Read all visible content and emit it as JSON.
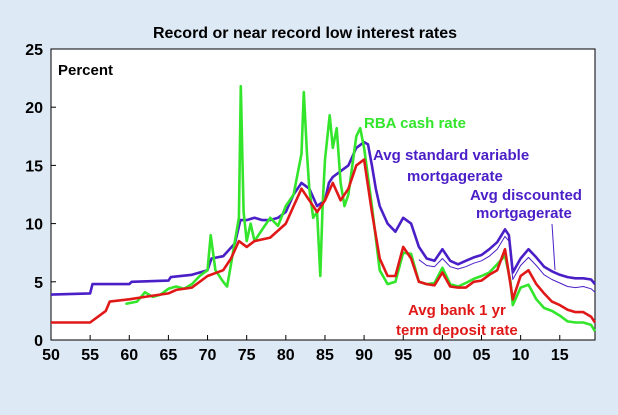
{
  "chart_data": {
    "type": "line",
    "title": "Record or near record low interest rates",
    "ylabel": "Percent",
    "xlabel": "",
    "xlim": [
      1950,
      2019.5
    ],
    "ylim": [
      0,
      25
    ],
    "x_ticks": [
      1950,
      1955,
      1960,
      1965,
      1970,
      1975,
      1980,
      1985,
      1990,
      1995,
      2000,
      2005,
      2010,
      2015
    ],
    "x_tick_labels": [
      "50",
      "55",
      "60",
      "65",
      "70",
      "75",
      "80",
      "85",
      "90",
      "95",
      "00",
      "05",
      "10",
      "15"
    ],
    "y_ticks": [
      0,
      5,
      10,
      15,
      20,
      25
    ],
    "y_tick_labels": [
      "0",
      "5",
      "10",
      "15",
      "20",
      "25"
    ],
    "grid": false,
    "series": [
      {
        "name": "Avg standard variable mortgagerate",
        "color": "#4b1fc7",
        "points": [
          [
            1950,
            3.9
          ],
          [
            1955,
            4.0
          ],
          [
            1955.3,
            4.8
          ],
          [
            1960,
            4.8
          ],
          [
            1960.3,
            5.0
          ],
          [
            1965,
            5.1
          ],
          [
            1965.3,
            5.4
          ],
          [
            1968,
            5.6
          ],
          [
            1970,
            6.0
          ],
          [
            1970.5,
            7.0
          ],
          [
            1972,
            7.2
          ],
          [
            1973.5,
            8.3
          ],
          [
            1974.2,
            10.3
          ],
          [
            1975,
            10.3
          ],
          [
            1976,
            10.5
          ],
          [
            1977,
            10.3
          ],
          [
            1978,
            10.3
          ],
          [
            1979,
            10.5
          ],
          [
            1980,
            11.0
          ],
          [
            1981,
            12.5
          ],
          [
            1982,
            13.5
          ],
          [
            1983,
            13.0
          ],
          [
            1984,
            11.5
          ],
          [
            1985,
            12.0
          ],
          [
            1985.5,
            13.5
          ],
          [
            1986,
            14.0
          ],
          [
            1987,
            14.5
          ],
          [
            1988,
            15.0
          ],
          [
            1989,
            16.5
          ],
          [
            1990,
            17.0
          ],
          [
            1990.5,
            16.8
          ],
          [
            1991,
            15.0
          ],
          [
            1991.5,
            13.0
          ],
          [
            1992,
            11.5
          ],
          [
            1993,
            10.0
          ],
          [
            1994,
            9.3
          ],
          [
            1995,
            10.5
          ],
          [
            1996,
            10.0
          ],
          [
            1997,
            8.0
          ],
          [
            1998,
            7.0
          ],
          [
            1999,
            6.8
          ],
          [
            2000,
            7.8
          ],
          [
            2001,
            6.8
          ],
          [
            2002,
            6.5
          ],
          [
            2003,
            6.8
          ],
          [
            2004,
            7.1
          ],
          [
            2005,
            7.3
          ],
          [
            2006,
            7.8
          ],
          [
            2007,
            8.4
          ],
          [
            2008,
            9.5
          ],
          [
            2008.5,
            9.0
          ],
          [
            2009,
            5.8
          ],
          [
            2010,
            7.0
          ],
          [
            2011,
            7.8
          ],
          [
            2012,
            7.1
          ],
          [
            2013,
            6.3
          ],
          [
            2014,
            5.9
          ],
          [
            2015,
            5.6
          ],
          [
            2016,
            5.4
          ],
          [
            2017,
            5.3
          ],
          [
            2018,
            5.3
          ],
          [
            2019,
            5.2
          ],
          [
            2019.5,
            4.8
          ]
        ]
      },
      {
        "name": "Avg discounted mortgagerate",
        "color": "#4b1fc7",
        "points": [
          [
            1997,
            6.9
          ],
          [
            1998,
            6.4
          ],
          [
            1999,
            6.3
          ],
          [
            2000,
            7.0
          ],
          [
            2001,
            6.3
          ],
          [
            2002,
            6.1
          ],
          [
            2003,
            6.3
          ],
          [
            2004,
            6.6
          ],
          [
            2005,
            6.8
          ],
          [
            2006,
            7.2
          ],
          [
            2007,
            7.8
          ],
          [
            2008,
            8.9
          ],
          [
            2008.5,
            8.5
          ],
          [
            2009,
            5.2
          ],
          [
            2010,
            6.4
          ],
          [
            2011,
            7.1
          ],
          [
            2012,
            6.4
          ],
          [
            2013,
            5.6
          ],
          [
            2014,
            5.2
          ],
          [
            2015,
            4.9
          ],
          [
            2016,
            4.6
          ],
          [
            2017,
            4.5
          ],
          [
            2018,
            4.6
          ],
          [
            2019,
            4.4
          ],
          [
            2019.5,
            4.1
          ]
        ]
      },
      {
        "name": "RBA cash rate",
        "color": "#33e52b",
        "points": [
          [
            1959.5,
            3.1
          ],
          [
            1961,
            3.3
          ],
          [
            1962,
            4.1
          ],
          [
            1963,
            3.7
          ],
          [
            1964,
            3.9
          ],
          [
            1965,
            4.4
          ],
          [
            1966,
            4.6
          ],
          [
            1967,
            4.4
          ],
          [
            1968,
            4.8
          ],
          [
            1969,
            5.5
          ],
          [
            1970,
            6.0
          ],
          [
            1970.4,
            9.0
          ],
          [
            1971,
            6.0
          ],
          [
            1972,
            5.0
          ],
          [
            1972.5,
            4.6
          ],
          [
            1973,
            6.5
          ],
          [
            1973.5,
            8.5
          ],
          [
            1974,
            10.5
          ],
          [
            1974.25,
            21.8
          ],
          [
            1974.6,
            11.0
          ],
          [
            1975,
            8.5
          ],
          [
            1975.5,
            10.0
          ],
          [
            1976,
            8.5
          ],
          [
            1977,
            9.5
          ],
          [
            1978,
            10.5
          ],
          [
            1979,
            9.8
          ],
          [
            1980,
            11.5
          ],
          [
            1981,
            12.5
          ],
          [
            1982,
            16.0
          ],
          [
            1982.3,
            21.3
          ],
          [
            1982.7,
            16.0
          ],
          [
            1983,
            13.0
          ],
          [
            1983.5,
            10.5
          ],
          [
            1984,
            11.0
          ],
          [
            1984.4,
            5.5
          ],
          [
            1984.7,
            11.5
          ],
          [
            1985,
            15.5
          ],
          [
            1985.6,
            19.3
          ],
          [
            1986,
            16.5
          ],
          [
            1986.5,
            18.2
          ],
          [
            1987,
            13.5
          ],
          [
            1987.5,
            11.5
          ],
          [
            1988,
            12.5
          ],
          [
            1989,
            17.5
          ],
          [
            1989.5,
            18.2
          ],
          [
            1990,
            16.5
          ],
          [
            1991,
            11.5
          ],
          [
            1992,
            6.0
          ],
          [
            1993,
            4.8
          ],
          [
            1994,
            5.0
          ],
          [
            1995,
            7.5
          ],
          [
            1996,
            7.4
          ],
          [
            1997,
            5.0
          ],
          [
            1998,
            4.8
          ],
          [
            1999,
            4.9
          ],
          [
            2000,
            6.2
          ],
          [
            2001,
            4.8
          ],
          [
            2002,
            4.6
          ],
          [
            2003,
            4.9
          ],
          [
            2004,
            5.25
          ],
          [
            2005,
            5.5
          ],
          [
            2006,
            5.8
          ],
          [
            2007,
            6.5
          ],
          [
            2008,
            7.25
          ],
          [
            2008.7,
            5.0
          ],
          [
            2009,
            3.0
          ],
          [
            2010,
            4.5
          ],
          [
            2011,
            4.75
          ],
          [
            2012,
            3.5
          ],
          [
            2013,
            2.75
          ],
          [
            2014,
            2.5
          ],
          [
            2015,
            2.1
          ],
          [
            2016,
            1.6
          ],
          [
            2017,
            1.5
          ],
          [
            2018,
            1.5
          ],
          [
            2019,
            1.3
          ],
          [
            2019.5,
            0.75
          ]
        ]
      },
      {
        "name": "Avg bank 1 yr term deposit rate",
        "color": "#e01818",
        "points": [
          [
            1950,
            1.5
          ],
          [
            1955,
            1.5
          ],
          [
            1957,
            2.5
          ],
          [
            1957.5,
            3.3
          ],
          [
            1960,
            3.5
          ],
          [
            1962,
            3.7
          ],
          [
            1965,
            4.0
          ],
          [
            1966,
            4.3
          ],
          [
            1968,
            4.5
          ],
          [
            1970,
            5.5
          ],
          [
            1972,
            6.0
          ],
          [
            1973,
            7.0
          ],
          [
            1974,
            8.5
          ],
          [
            1975,
            8.0
          ],
          [
            1976,
            8.5
          ],
          [
            1978,
            8.8
          ],
          [
            1980,
            10.0
          ],
          [
            1981,
            11.5
          ],
          [
            1982,
            13.0
          ],
          [
            1983,
            12.0
          ],
          [
            1984,
            11.0
          ],
          [
            1985,
            12.0
          ],
          [
            1986,
            13.5
          ],
          [
            1987,
            12.0
          ],
          [
            1988,
            13.0
          ],
          [
            1989,
            15.0
          ],
          [
            1990,
            15.5
          ],
          [
            1991,
            11.0
          ],
          [
            1992,
            7.0
          ],
          [
            1993,
            5.5
          ],
          [
            1994,
            5.5
          ],
          [
            1995,
            8.0
          ],
          [
            1996,
            7.0
          ],
          [
            1997,
            5.0
          ],
          [
            1998,
            4.8
          ],
          [
            1999,
            4.7
          ],
          [
            2000,
            5.8
          ],
          [
            2001,
            4.6
          ],
          [
            2002,
            4.5
          ],
          [
            2003,
            4.5
          ],
          [
            2004,
            5.0
          ],
          [
            2005,
            5.1
          ],
          [
            2006,
            5.6
          ],
          [
            2007,
            6.0
          ],
          [
            2008,
            7.8
          ],
          [
            2009,
            3.5
          ],
          [
            2010,
            5.5
          ],
          [
            2011,
            6.0
          ],
          [
            2012,
            4.8
          ],
          [
            2013,
            4.0
          ],
          [
            2014,
            3.3
          ],
          [
            2015,
            3.0
          ],
          [
            2016,
            2.6
          ],
          [
            2017,
            2.4
          ],
          [
            2018,
            2.4
          ],
          [
            2019,
            2.0
          ],
          [
            2019.5,
            1.5
          ]
        ]
      }
    ],
    "annotations": [
      {
        "text": "RBA cash rate",
        "color": "#33e52b"
      },
      {
        "text": "Avg standard variable",
        "color": "#4b1fc7"
      },
      {
        "text": "mortgagerate",
        "color": "#4b1fc7"
      },
      {
        "text": "Avg discounted",
        "color": "#4b1fc7"
      },
      {
        "text": "mortgagerate",
        "color": "#4b1fc7"
      },
      {
        "text": "Avg bank 1 yr",
        "color": "#e01818"
      },
      {
        "text": "term deposit rate",
        "color": "#e01818"
      }
    ]
  }
}
